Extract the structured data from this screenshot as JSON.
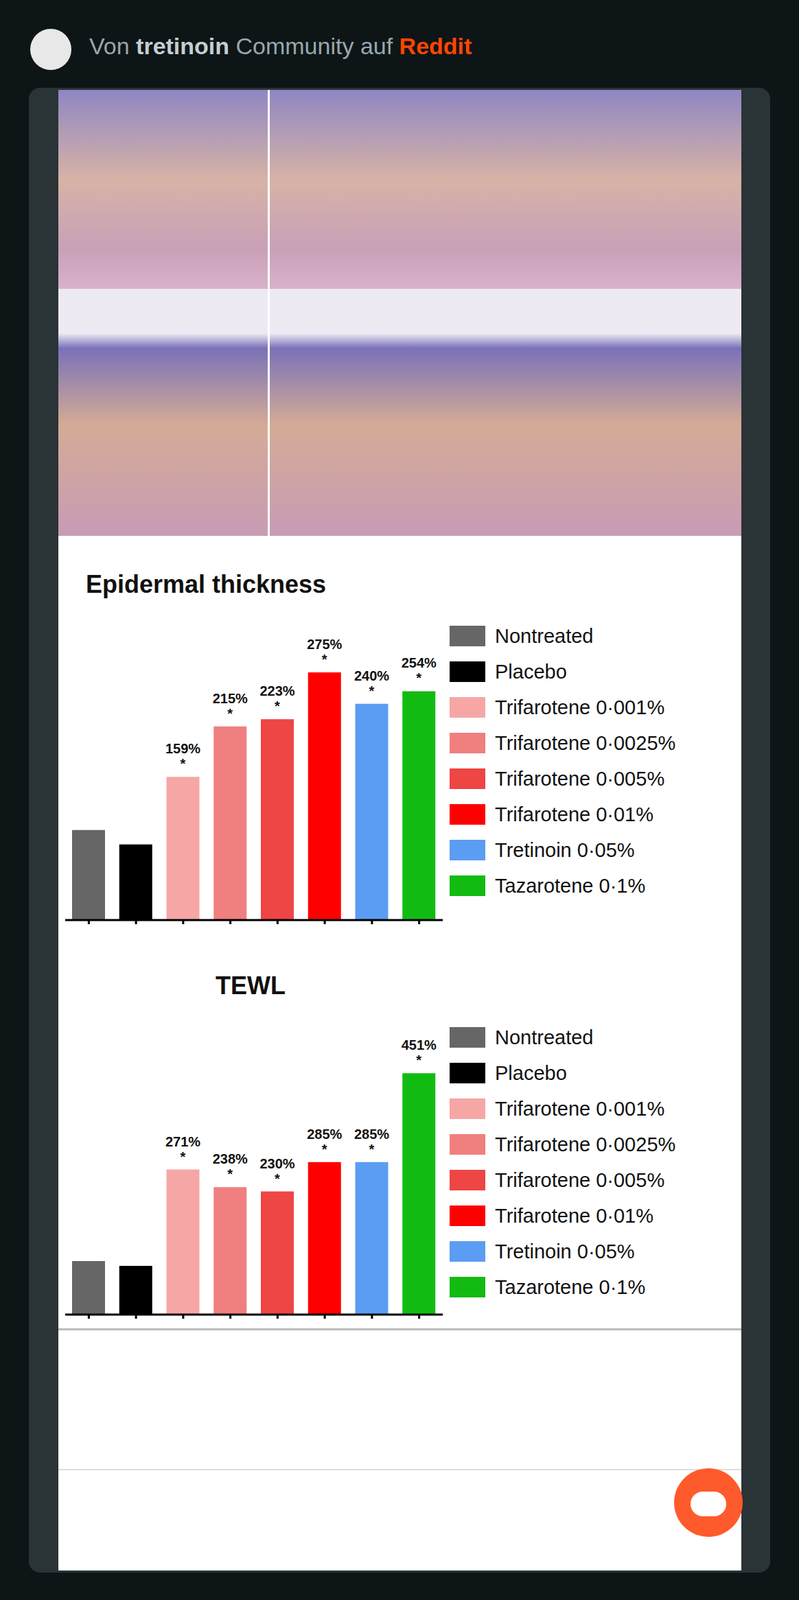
{
  "header": {
    "prefix": "Von",
    "community": "tretinoin",
    "connector": "Community auf",
    "site": "Reddit"
  },
  "chart_data": [
    {
      "type": "bar",
      "title": "Epidermal thickness",
      "categories": [
        "Nontreated",
        "Placebo",
        "Trifarotene 0·001%",
        "Trifarotene 0·0025%",
        "Trifarotene 0·005%",
        "Trifarotene 0·01%",
        "Tretinoin 0·05%",
        "Tazarotene 0·1%"
      ],
      "values": [
        100,
        84,
        159,
        215,
        223,
        275,
        240,
        254
      ],
      "value_labels": [
        null,
        null,
        "159%",
        "215%",
        "223%",
        "275%",
        "240%",
        "254%"
      ],
      "significance": [
        null,
        null,
        "*",
        "*",
        "*",
        "*",
        "*",
        "*"
      ],
      "colors": [
        "#666666",
        "#000000",
        "#f7a6a6",
        "#f07f7f",
        "#ee4545",
        "#ff0000",
        "#5b9df2",
        "#12bb12"
      ],
      "data_labels": true,
      "tick_labels": false,
      "legend": "right"
    },
    {
      "type": "bar",
      "title": "TEWL",
      "categories": [
        "Nontreated",
        "Placebo",
        "Trifarotene 0·001%",
        "Trifarotene 0·0025%",
        "Trifarotene 0·005%",
        "Trifarotene 0·01%",
        "Tretinoin 0·05%",
        "Tazarotene 0·1%"
      ],
      "values": [
        100,
        91,
        271,
        238,
        230,
        285,
        285,
        451
      ],
      "value_labels": [
        null,
        null,
        "271%",
        "238%",
        "230%",
        "285%",
        "285%",
        "451%"
      ],
      "significance": [
        null,
        null,
        "*",
        "*",
        "*",
        "*",
        "*",
        "*"
      ],
      "colors": [
        "#666666",
        "#000000",
        "#f7a6a6",
        "#f07f7f",
        "#ee4545",
        "#ff0000",
        "#5b9df2",
        "#12bb12"
      ],
      "data_labels": true,
      "tick_labels": false,
      "legend": "right"
    }
  ]
}
